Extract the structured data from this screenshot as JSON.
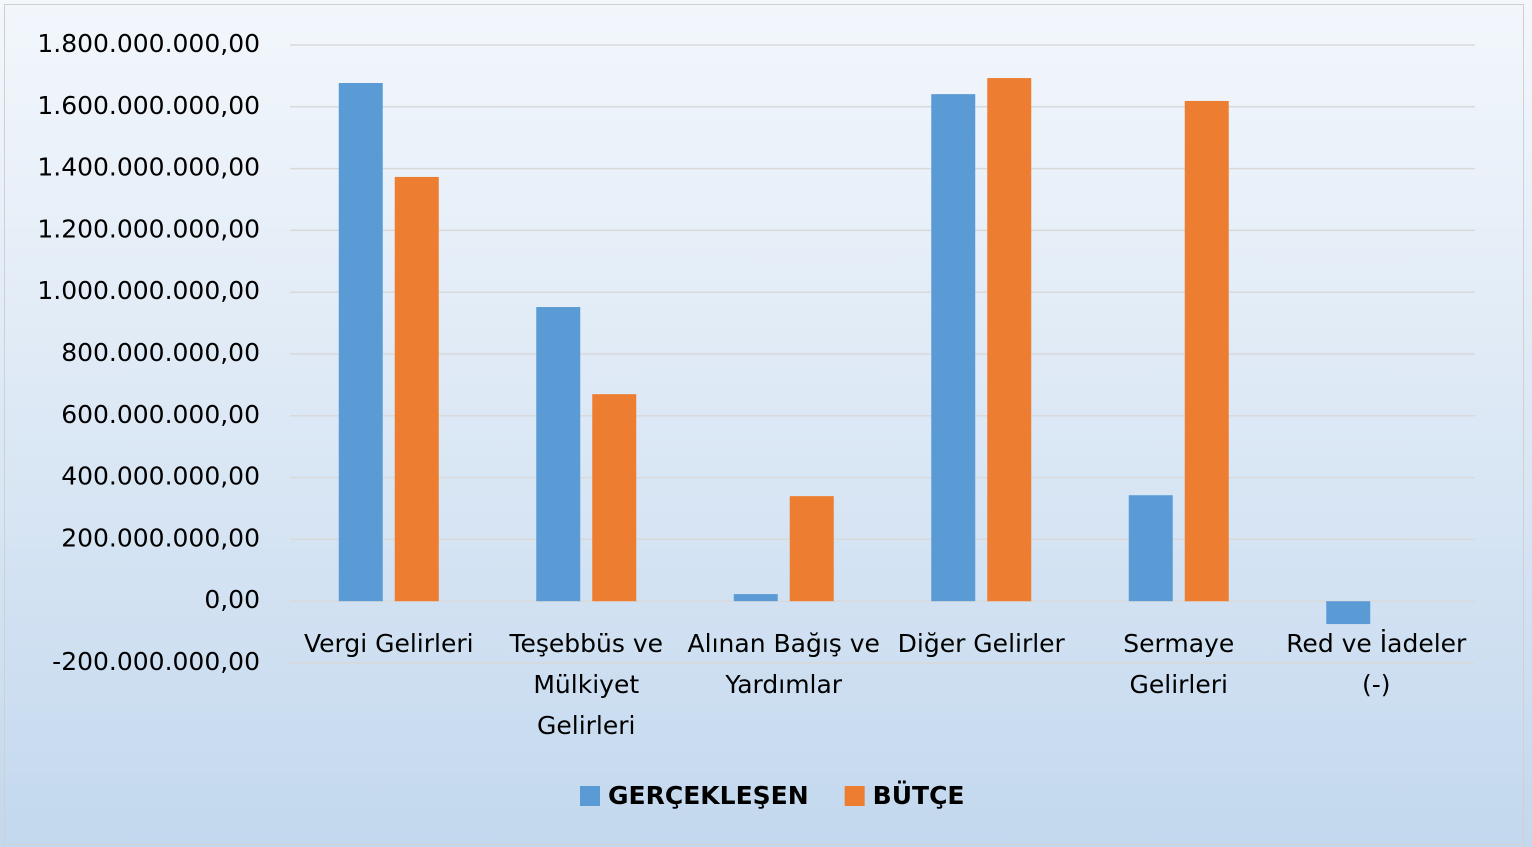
{
  "chart_data": {
    "type": "bar",
    "categories": [
      "Vergi Gelirleri",
      "Teşebbüs ve Mülkiyet Gelirleri",
      "Alınan Bağış ve Yardımlar",
      "Diğer Gelirler",
      "Sermaye Gelirleri",
      "Red ve İadeler (-)"
    ],
    "series": [
      {
        "name": "GERÇEKLEŞEN",
        "color": "#5b9bd5",
        "values": [
          1677000000,
          952000000,
          23000000,
          1641000000,
          343000000,
          -74000000
        ]
      },
      {
        "name": "BÜTÇE",
        "color": "#ed7d31",
        "values": [
          1373000000,
          670000000,
          340000000,
          1693000000,
          1619000000,
          0
        ]
      }
    ],
    "ylim": [
      -200000000,
      1800000000
    ],
    "yticks": [
      {
        "value": -200000000,
        "label": "-200.000.000,00"
      },
      {
        "value": 0,
        "label": "0,00"
      },
      {
        "value": 200000000,
        "label": "200.000.000,00"
      },
      {
        "value": 400000000,
        "label": "400.000.000,00"
      },
      {
        "value": 600000000,
        "label": "600.000.000,00"
      },
      {
        "value": 800000000,
        "label": "800.000.000,00"
      },
      {
        "value": 1000000000,
        "label": "1.000.000.000,00"
      },
      {
        "value": 1200000000,
        "label": "1.200.000.000,00"
      },
      {
        "value": 1400000000,
        "label": "1.400.000.000,00"
      },
      {
        "value": 1600000000,
        "label": "1.600.000.000,00"
      },
      {
        "value": 1800000000,
        "label": "1.800.000.000,00"
      }
    ],
    "grid": true,
    "legend": "bottom"
  }
}
